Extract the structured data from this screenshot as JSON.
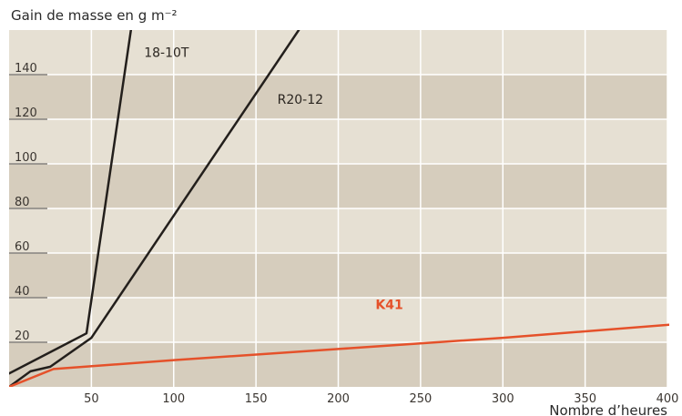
{
  "chart_data": {
    "type": "line",
    "title": "",
    "ylabel": "Gain de masse en g m⁻²",
    "xlabel": "Nombre d’heures",
    "xlim": [
      0,
      400
    ],
    "ylim": [
      0,
      160
    ],
    "x_ticks": [
      50,
      100,
      150,
      200,
      250,
      300,
      350,
      400
    ],
    "y_ticks": [
      20,
      40,
      60,
      80,
      100,
      120,
      140
    ],
    "grid": true,
    "band_colors": [
      "#d6cdbd",
      "#e6e0d3"
    ],
    "series": [
      {
        "name": "18-10T",
        "color": "#231f1c",
        "label": "18-10T",
        "points": [
          [
            0,
            6
          ],
          [
            47,
            24
          ],
          [
            74,
            160
          ]
        ]
      },
      {
        "name": "R20-12",
        "color": "#231f1c",
        "label": "R20-12",
        "points": [
          [
            0,
            0
          ],
          [
            13,
            7
          ],
          [
            25,
            9
          ],
          [
            50,
            22
          ],
          [
            176,
            160
          ]
        ]
      },
      {
        "name": "K41",
        "color": "#e5512a",
        "label": "K41",
        "points": [
          [
            0,
            0
          ],
          [
            27,
            8
          ],
          [
            100,
            12
          ],
          [
            200,
            17
          ],
          [
            300,
            22
          ],
          [
            404,
            28
          ]
        ]
      }
    ]
  }
}
